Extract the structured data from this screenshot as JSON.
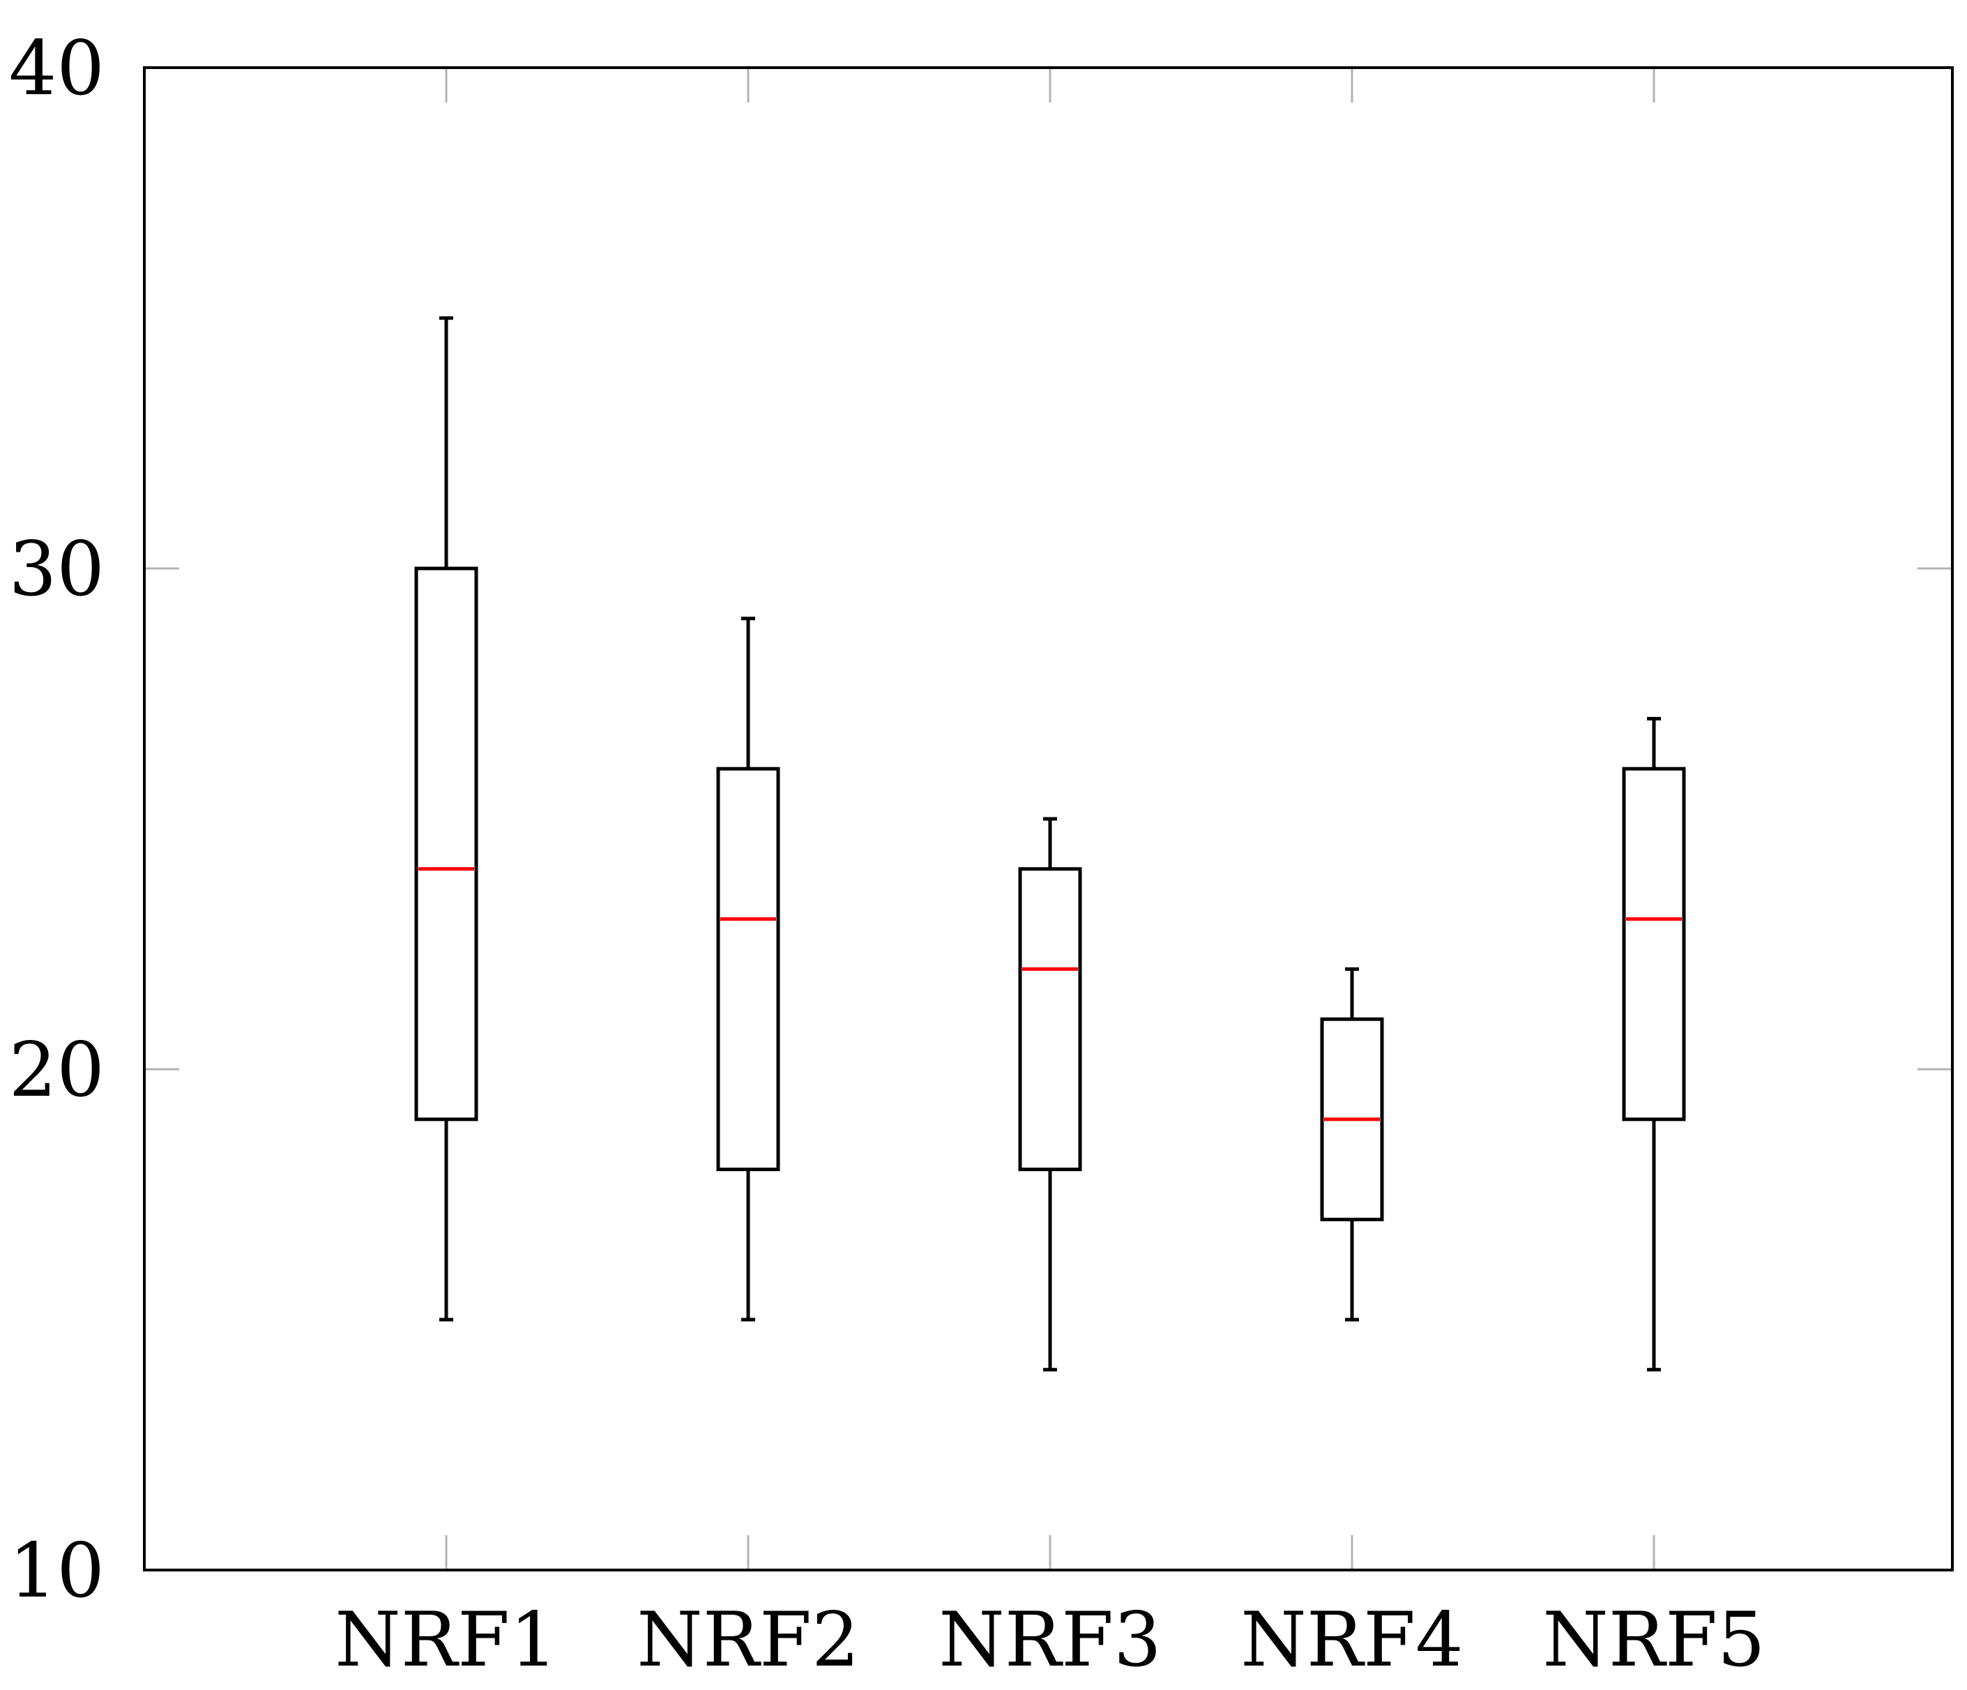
{
  "chart_data": {
    "type": "box",
    "title": "",
    "xlabel": "",
    "ylabel": "",
    "ylim": [
      10,
      40
    ],
    "yticks": [
      "10",
      "20",
      "30",
      "40"
    ],
    "grid": false,
    "categories": [
      "NRF1",
      "NRF2",
      "NRF3",
      "NRF4",
      "NRF5"
    ],
    "boxes": [
      {
        "label": "NRF1",
        "whisker_low": 15,
        "q1": 19,
        "median": 24,
        "q3": 30,
        "whisker_high": 35
      },
      {
        "label": "NRF2",
        "whisker_low": 15,
        "q1": 18,
        "median": 23,
        "q3": 26,
        "whisker_high": 29
      },
      {
        "label": "NRF3",
        "whisker_low": 14,
        "q1": 18,
        "median": 22,
        "q3": 24,
        "whisker_high": 25
      },
      {
        "label": "NRF4",
        "whisker_low": 15,
        "q1": 17,
        "median": 19,
        "q3": 21,
        "whisker_high": 22
      },
      {
        "label": "NRF5",
        "whisker_low": 14,
        "q1": 19,
        "median": 23,
        "q3": 26,
        "whisker_high": 27
      }
    ],
    "colors": {
      "box": "#000000",
      "median": "#ff0000",
      "tick": "#b3b3b3",
      "axis": "#000000"
    }
  }
}
